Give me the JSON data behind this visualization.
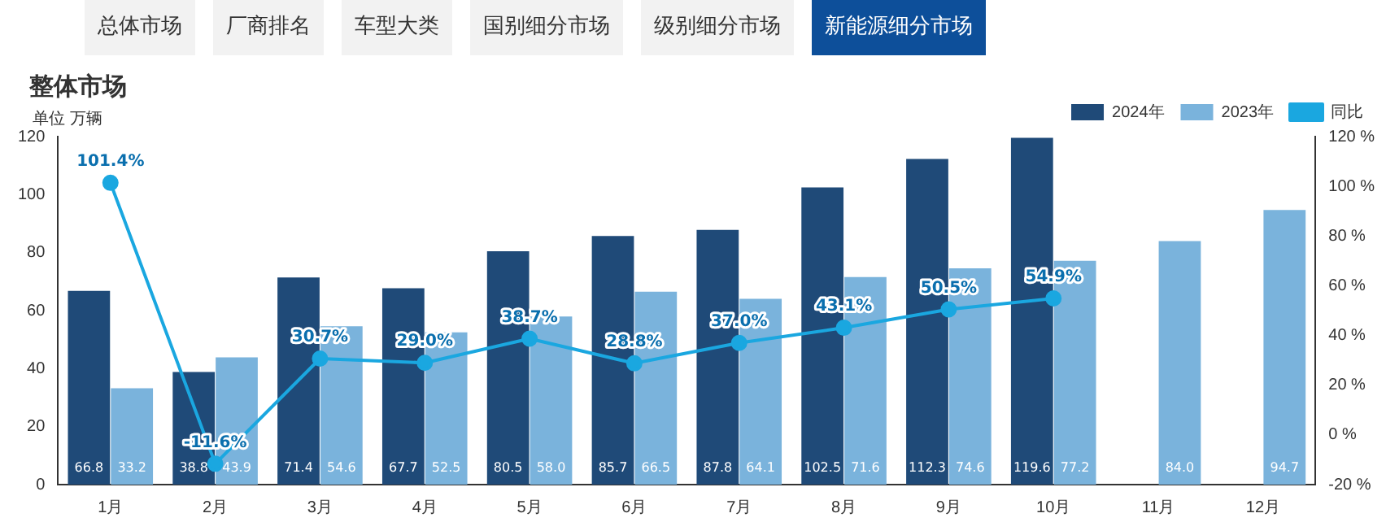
{
  "chart_data": {
    "type": "bar",
    "title": "整体市场",
    "subtitle": "单位 万辆",
    "annotations": [
      "总体市场",
      "厂商排名",
      "车型大类",
      "国别细分市场",
      "级别细分市场",
      "新能源细分市场"
    ],
    "categories": [
      "1月",
      "2月",
      "3月",
      "4月",
      "5月",
      "6月",
      "7月",
      "8月",
      "9月",
      "10月",
      "11月",
      "12月"
    ],
    "series": [
      {
        "name": "2024年",
        "color": "#1f4a78",
        "values": [
          66.8,
          38.8,
          71.4,
          67.7,
          80.5,
          85.7,
          87.8,
          102.5,
          112.3,
          119.6,
          null,
          null
        ],
        "value_labels": [
          "66.8",
          "38.8",
          "71.4",
          "67.7",
          "80.5",
          "85.7",
          "87.8",
          "102.5",
          "112.3",
          "119.6",
          null,
          null
        ]
      },
      {
        "name": "2023年",
        "color": "#7ab3dc",
        "values": [
          33.2,
          43.9,
          54.6,
          52.5,
          58.0,
          66.5,
          64.1,
          71.6,
          74.6,
          77.2,
          84.0,
          94.7
        ],
        "value_labels": [
          "33.2",
          "43.9",
          "54.6",
          "52.5",
          "58.0",
          "66.5",
          "64.1",
          "71.6",
          "74.6",
          "77.2",
          "84.0",
          "94.7"
        ]
      },
      {
        "name": "同比",
        "type": "line",
        "axis": "y2",
        "color": "#1aa7e0",
        "values": [
          101.4,
          -11.6,
          30.7,
          29.0,
          38.7,
          28.8,
          37.0,
          43.1,
          50.5,
          54.9,
          null,
          null
        ],
        "value_labels": [
          "101.4%",
          "-11.6%",
          "30.7%",
          "29.0%",
          "38.7%",
          "28.8%",
          "37.0%",
          "43.1%",
          "50.5%",
          "54.9%",
          null,
          null
        ]
      }
    ],
    "ylim": [
      0,
      120
    ],
    "yticks": [
      0,
      20,
      40,
      60,
      80,
      100,
      120
    ],
    "y2lim": [
      -20,
      120
    ],
    "y2ticks": [
      {
        "value": -20,
        "label": "-20 %"
      },
      {
        "value": 0,
        "label": "0 %"
      },
      {
        "value": 20,
        "label": "20 %"
      },
      {
        "value": 40,
        "label": "40 %"
      },
      {
        "value": 60,
        "label": "60 %"
      },
      {
        "value": 80,
        "label": "80 %"
      },
      {
        "value": 100,
        "label": "100 %"
      },
      {
        "value": 120,
        "label": "120 %"
      }
    ],
    "legend": "top right",
    "grid": false,
    "marker": "circle",
    "line_style": "solid"
  }
}
